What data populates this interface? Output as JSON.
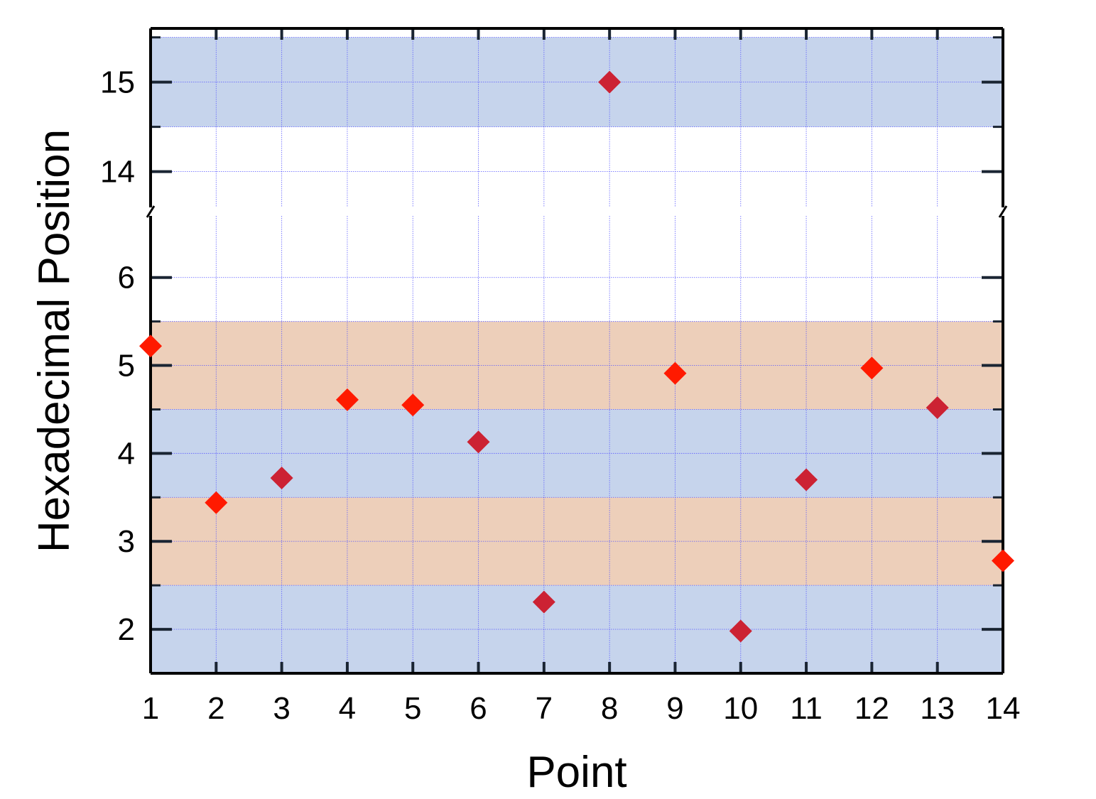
{
  "chart_data": {
    "type": "scatter",
    "title": "",
    "xlabel": "Point",
    "ylabel": "Hexadecimal Position",
    "x": [
      1,
      2,
      3,
      4,
      5,
      6,
      7,
      8,
      9,
      10,
      11,
      12,
      13,
      14
    ],
    "series": [
      {
        "values": [
          5.22,
          3.44,
          3.72,
          4.61,
          4.55,
          4.13,
          2.31,
          15.0,
          4.91,
          1.98,
          3.7,
          4.97,
          4.52,
          2.78
        ]
      }
    ],
    "x_ticks": [
      "1",
      "2",
      "3",
      "4",
      "5",
      "6",
      "7",
      "8",
      "9",
      "10",
      "11",
      "12",
      "13",
      "14"
    ],
    "y_ticks_lower": [
      "2",
      "3",
      "4",
      "5",
      "6"
    ],
    "y_ticks_upper": [
      "14",
      "15"
    ],
    "xlim": [
      1,
      14
    ],
    "ylim_lower": [
      1.5,
      6.7
    ],
    "ylim_upper": [
      13.6,
      15.6
    ],
    "axis_break": "between 6.7 and 13.6",
    "grid": true,
    "bands": [
      {
        "from": 1.5,
        "to": 2.5,
        "color": "#c6d4ec"
      },
      {
        "from": 2.5,
        "to": 3.5,
        "color": "#edcfba"
      },
      {
        "from": 3.5,
        "to": 4.5,
        "color": "#c6d4ec"
      },
      {
        "from": 4.5,
        "to": 5.5,
        "color": "#edcfba"
      },
      {
        "from": 14.5,
        "to": 15.5,
        "color": "#c6d4ec"
      }
    ],
    "marker": "diamond",
    "colors": {
      "marker_dark": "#cc2233",
      "marker_bright": "#ff1a00",
      "grid": "#5a5aff",
      "axis": "#000000",
      "tick": "#1a2533"
    }
  }
}
